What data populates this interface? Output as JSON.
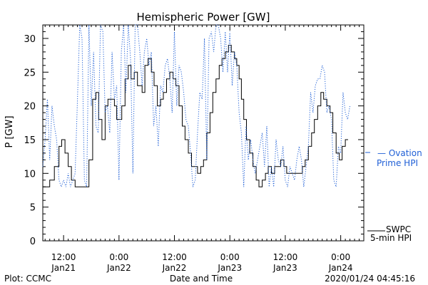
{
  "chart_data": {
    "type": "line",
    "title": "Hemispheric Power [GW]",
    "ylabel": "P [GW]",
    "xlabel": "Date and Time",
    "ylim": [
      0,
      32
    ],
    "xlim_hours": [
      -21,
      60
    ],
    "y_ticks": [
      "0",
      "5",
      "10",
      "15",
      "20",
      "25",
      "30"
    ],
    "y_tick_values": [
      0,
      5,
      10,
      15,
      20,
      25,
      30
    ],
    "x_ticks": [
      {
        "hour": 12,
        "time": "12:00",
        "date": "Jan21"
      },
      {
        "hour": 24,
        "time": "0:00",
        "date": "Jan22"
      },
      {
        "hour": 36,
        "time": "12:00",
        "date": "Jan22"
      },
      {
        "hour": 48,
        "time": "0:00",
        "date": "Jan23"
      },
      {
        "hour": 60,
        "time": "12:00",
        "date": "Jan23"
      },
      {
        "hour": 72,
        "time": "0:00",
        "date": "Jan24"
      }
    ],
    "x_axis_start_hour": 7.5,
    "x_axis_end_hour": 77,
    "series": [
      {
        "name": "SWPC 5-min HPI",
        "legend_line1": "SWPC",
        "legend_line2": "5-min HPI",
        "color": "#000000",
        "style": "solid-step",
        "points": [
          [
            7.5,
            8
          ],
          [
            9,
            9
          ],
          [
            10,
            11
          ],
          [
            11,
            14
          ],
          [
            11.6,
            15
          ],
          [
            12.3,
            13
          ],
          [
            13,
            11
          ],
          [
            13.7,
            9
          ],
          [
            14.5,
            8
          ],
          [
            16.5,
            8
          ],
          [
            17.5,
            12
          ],
          [
            18.3,
            21
          ],
          [
            19,
            22
          ],
          [
            19.6,
            18
          ],
          [
            20.3,
            15
          ],
          [
            21,
            20
          ],
          [
            21.6,
            21
          ],
          [
            22.3,
            21
          ],
          [
            23,
            20
          ],
          [
            23.5,
            18
          ],
          [
            24,
            18
          ],
          [
            24.6,
            20
          ],
          [
            25.3,
            24
          ],
          [
            26,
            26
          ],
          [
            26.6,
            24
          ],
          [
            27.3,
            25
          ],
          [
            28,
            23
          ],
          [
            29,
            22
          ],
          [
            29.6,
            26
          ],
          [
            30.3,
            27
          ],
          [
            31,
            25
          ],
          [
            31.6,
            23
          ],
          [
            32.3,
            20
          ],
          [
            33,
            21
          ],
          [
            33.6,
            22
          ],
          [
            34.3,
            24
          ],
          [
            35,
            25
          ],
          [
            35.7,
            24
          ],
          [
            36.3,
            23
          ],
          [
            37,
            20
          ],
          [
            37.7,
            17
          ],
          [
            38.3,
            15
          ],
          [
            39,
            13
          ],
          [
            39.7,
            11
          ],
          [
            40.3,
            11
          ],
          [
            41,
            10
          ],
          [
            41.7,
            11
          ],
          [
            42.3,
            12
          ],
          [
            43,
            16
          ],
          [
            43.7,
            19
          ],
          [
            44.3,
            22
          ],
          [
            45,
            24
          ],
          [
            45.7,
            26
          ],
          [
            46.3,
            27
          ],
          [
            47,
            28
          ],
          [
            47.7,
            29
          ],
          [
            48.3,
            28
          ],
          [
            49,
            27
          ],
          [
            49.5,
            26
          ],
          [
            50,
            24
          ],
          [
            50.5,
            21
          ],
          [
            51,
            18
          ],
          [
            51.6,
            15
          ],
          [
            52.3,
            13
          ],
          [
            53,
            11
          ],
          [
            53.7,
            9
          ],
          [
            54.3,
            8
          ],
          [
            55,
            9
          ],
          [
            55.7,
            10
          ],
          [
            56.3,
            11
          ],
          [
            57,
            10
          ],
          [
            57.7,
            11
          ],
          [
            58.3,
            11
          ],
          [
            59,
            12
          ],
          [
            59.7,
            11
          ],
          [
            60.3,
            10
          ],
          [
            61,
            10
          ],
          [
            62,
            10
          ],
          [
            63,
            10
          ],
          [
            63.7,
            11
          ],
          [
            64.3,
            12
          ],
          [
            65,
            14
          ],
          [
            65.7,
            16
          ],
          [
            66.3,
            18
          ],
          [
            67,
            20
          ],
          [
            67.7,
            22
          ],
          [
            68.3,
            21
          ],
          [
            69,
            20
          ],
          [
            69.7,
            19
          ],
          [
            70.3,
            16
          ],
          [
            71,
            13
          ],
          [
            71.7,
            12
          ],
          [
            72.3,
            14
          ],
          [
            73,
            15
          ],
          [
            73.6,
            15
          ]
        ]
      },
      {
        "name": "Ovation Prime HPI",
        "legend_line1": "— Ovation",
        "legend_line2": "Prime HPI",
        "color": "#1f5fd6",
        "style": "dotted",
        "points": [
          [
            7.5,
            11
          ],
          [
            8,
            15
          ],
          [
            8.5,
            21
          ],
          [
            9,
            12
          ],
          [
            9.5,
            20
          ],
          [
            10,
            17
          ],
          [
            10.5,
            15
          ],
          [
            11,
            9
          ],
          [
            11.5,
            8
          ],
          [
            12,
            9
          ],
          [
            12.5,
            8
          ],
          [
            13,
            10
          ],
          [
            13.5,
            8
          ],
          [
            14,
            9
          ],
          [
            14.5,
            10
          ],
          [
            15,
            21
          ],
          [
            15.5,
            32
          ],
          [
            16,
            30
          ],
          [
            16.5,
            9
          ],
          [
            17,
            8
          ],
          [
            17.5,
            32
          ],
          [
            18,
            20
          ],
          [
            18.5,
            28
          ],
          [
            19,
            17
          ],
          [
            19.5,
            16
          ],
          [
            20,
            32
          ],
          [
            20.5,
            31
          ],
          [
            21,
            19
          ],
          [
            21.5,
            20
          ],
          [
            22,
            16
          ],
          [
            22.5,
            28
          ],
          [
            23,
            21
          ],
          [
            23.5,
            23
          ],
          [
            24,
            9
          ],
          [
            24.5,
            28
          ],
          [
            25,
            32
          ],
          [
            25.5,
            22
          ],
          [
            26,
            32
          ],
          [
            26.5,
            27
          ],
          [
            27,
            10
          ],
          [
            27.5,
            32
          ],
          [
            28,
            32
          ],
          [
            28.5,
            28
          ],
          [
            29,
            23
          ],
          [
            29.5,
            28
          ],
          [
            30,
            30
          ],
          [
            30.5,
            26
          ],
          [
            31,
            28
          ],
          [
            31.5,
            17
          ],
          [
            32,
            20
          ],
          [
            32.5,
            14
          ],
          [
            33,
            23
          ],
          [
            33.5,
            22
          ],
          [
            34,
            26
          ],
          [
            34.5,
            27
          ],
          [
            35,
            24
          ],
          [
            35.5,
            19
          ],
          [
            36,
            31
          ],
          [
            36.5,
            20
          ],
          [
            37,
            26
          ],
          [
            37.5,
            25
          ],
          [
            38,
            22
          ],
          [
            38.5,
            18
          ],
          [
            39,
            17
          ],
          [
            39.5,
            13
          ],
          [
            40,
            8
          ],
          [
            40.5,
            9
          ],
          [
            41,
            16
          ],
          [
            41.5,
            22
          ],
          [
            42,
            21
          ],
          [
            42.5,
            30
          ],
          [
            43,
            12
          ],
          [
            43.5,
            30
          ],
          [
            44,
            31
          ],
          [
            44.5,
            28
          ],
          [
            45,
            32
          ],
          [
            45.5,
            32
          ],
          [
            46,
            30
          ],
          [
            46.5,
            25
          ],
          [
            47,
            31
          ],
          [
            47.5,
            25
          ],
          [
            48,
            31
          ],
          [
            48.5,
            23
          ],
          [
            49,
            28
          ],
          [
            49.5,
            26
          ],
          [
            50,
            19
          ],
          [
            50.5,
            16
          ],
          [
            51,
            8
          ],
          [
            51.5,
            17
          ],
          [
            52,
            12
          ],
          [
            52.5,
            15
          ],
          [
            53,
            12
          ],
          [
            53.5,
            10
          ],
          [
            54,
            12
          ],
          [
            54.5,
            14
          ],
          [
            55,
            16
          ],
          [
            55.5,
            11
          ],
          [
            56,
            17
          ],
          [
            56.5,
            8
          ],
          [
            57,
            11
          ],
          [
            57.5,
            8
          ],
          [
            58,
            15
          ],
          [
            58.5,
            12
          ],
          [
            59,
            11
          ],
          [
            59.5,
            14
          ],
          [
            60,
            9
          ],
          [
            60.5,
            8
          ],
          [
            61,
            11
          ],
          [
            61.5,
            10
          ],
          [
            62,
            9
          ],
          [
            62.5,
            12
          ],
          [
            63,
            14
          ],
          [
            63.5,
            12
          ],
          [
            64,
            8
          ],
          [
            64.5,
            11
          ],
          [
            65,
            14
          ],
          [
            65.5,
            22
          ],
          [
            66,
            19
          ],
          [
            66.5,
            23
          ],
          [
            67,
            24
          ],
          [
            67.5,
            24
          ],
          [
            68,
            26
          ],
          [
            68.5,
            25
          ],
          [
            69,
            19
          ],
          [
            69.5,
            20
          ],
          [
            70,
            18
          ],
          [
            70.5,
            9
          ],
          [
            71,
            8
          ],
          [
            71.5,
            14
          ],
          [
            72,
            13
          ],
          [
            72.5,
            22
          ],
          [
            73,
            19
          ],
          [
            73.5,
            18
          ],
          [
            74,
            20
          ]
        ]
      }
    ],
    "footer_left": "Plot: CCMC",
    "footer_right": "2020/01/24 04:45:16"
  }
}
